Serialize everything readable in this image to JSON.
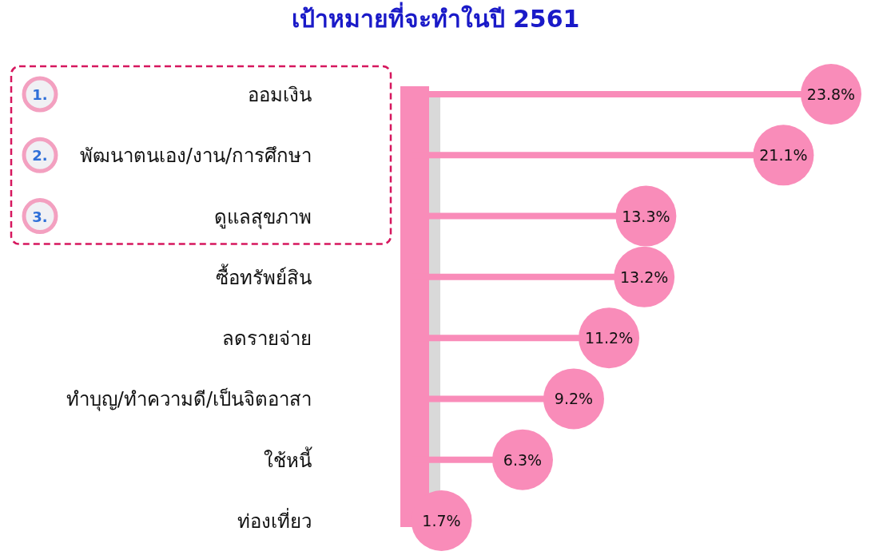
{
  "chart_data": {
    "type": "lollipop",
    "orientation": "horizontal",
    "title": "เป้าหมายที่จะทำในปี 2561",
    "categories": [
      "ออมเงิน",
      "พัฒนาตนเอง/งาน/การศึกษา",
      "ดูแลสุขภาพ",
      "ซื้อทรัพย์สิน",
      "ลดรายจ่าย",
      "ทำบุญ/ทำความดี/เป็นจิตอาสา",
      "ใช้หนี้",
      "ท่องเที่ยว"
    ],
    "values": [
      23.8,
      21.1,
      13.3,
      13.2,
      11.2,
      9.2,
      6.3,
      1.7
    ],
    "value_labels": [
      "23.8%",
      "21.1%",
      "13.3%",
      "13.2%",
      "11.2%",
      "9.2%",
      "6.3%",
      "1.7%"
    ],
    "color": "#f98cb9",
    "annotations": [
      "1.",
      "2.",
      "3."
    ]
  }
}
